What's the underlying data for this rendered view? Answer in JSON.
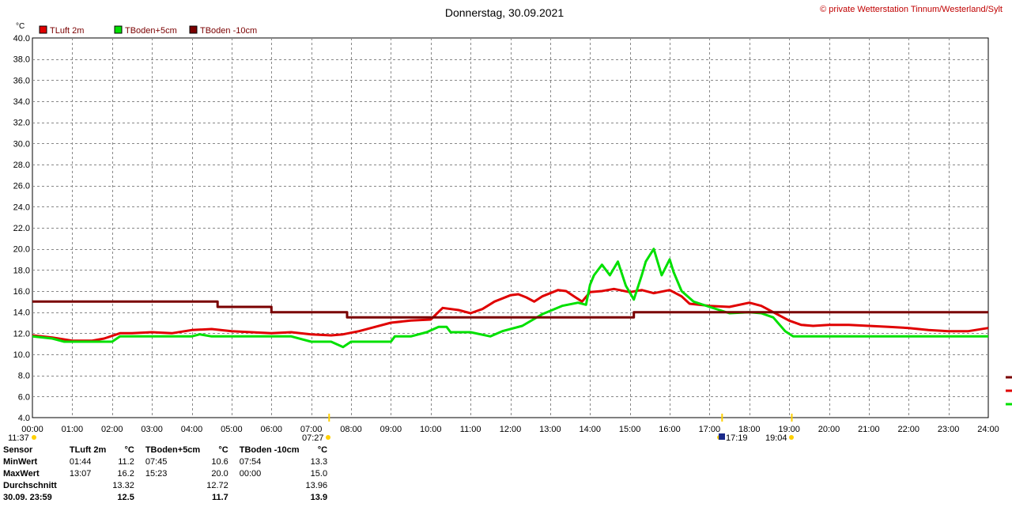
{
  "chart_data": {
    "type": "line",
    "title": "Donnerstag, 30.09.2021",
    "source": "© private Wetterstation Tinnum/Westerland/Sylt",
    "unit": "°C",
    "xlabels": [
      "00:00",
      "01:00",
      "02:00",
      "03:00",
      "04:00",
      "05:00",
      "06:00",
      "07:00",
      "08:00",
      "09:00",
      "10:00",
      "11:00",
      "12:00",
      "13:00",
      "14:00",
      "15:00",
      "16:00",
      "17:00",
      "18:00",
      "19:00",
      "20:00",
      "21:00",
      "22:00",
      "23:00",
      "24:00"
    ],
    "ylabels": [
      "4.0",
      "6.0",
      "8.0",
      "10.0",
      "12.0",
      "14.0",
      "16.0",
      "18.0",
      "20.0",
      "22.0",
      "24.0",
      "26.0",
      "28.0",
      "30.0",
      "32.0",
      "34.0",
      "36.0",
      "38.0",
      "40.0"
    ],
    "ylim": [
      4,
      40
    ],
    "xlim": [
      0,
      24
    ],
    "grid": true,
    "legend_position": "top-left",
    "markers": [
      {
        "time": "11:37",
        "symbol": "sun"
      },
      {
        "time": "07:27",
        "symbol": "sunrise"
      },
      {
        "time": "17:19",
        "symbol": "moon"
      },
      {
        "time": "19:04",
        "symbol": "sunset"
      }
    ],
    "series": [
      {
        "name": "TLuft 2m",
        "color": "#e00000",
        "points": [
          [
            0,
            11.8
          ],
          [
            0.5,
            11.6
          ],
          [
            1,
            11.3
          ],
          [
            1.5,
            11.3
          ],
          [
            1.8,
            11.5
          ],
          [
            2.2,
            12.0
          ],
          [
            2.5,
            12.0
          ],
          [
            3,
            12.1
          ],
          [
            3.5,
            12.0
          ],
          [
            4,
            12.3
          ],
          [
            4.5,
            12.4
          ],
          [
            5,
            12.2
          ],
          [
            5.5,
            12.1
          ],
          [
            6,
            12.0
          ],
          [
            6.5,
            12.1
          ],
          [
            7,
            11.9
          ],
          [
            7.5,
            11.8
          ],
          [
            7.8,
            11.9
          ],
          [
            8.2,
            12.2
          ],
          [
            8.5,
            12.5
          ],
          [
            9,
            13.0
          ],
          [
            9.5,
            13.2
          ],
          [
            10,
            13.3
          ],
          [
            10.3,
            14.4
          ],
          [
            10.7,
            14.2
          ],
          [
            11,
            13.9
          ],
          [
            11.3,
            14.3
          ],
          [
            11.6,
            15.0
          ],
          [
            12,
            15.6
          ],
          [
            12.2,
            15.7
          ],
          [
            12.4,
            15.4
          ],
          [
            12.6,
            15.0
          ],
          [
            12.8,
            15.5
          ],
          [
            13,
            15.8
          ],
          [
            13.2,
            16.1
          ],
          [
            13.4,
            16.0
          ],
          [
            13.6,
            15.5
          ],
          [
            13.8,
            15.0
          ],
          [
            14,
            15.9
          ],
          [
            14.3,
            16.0
          ],
          [
            14.6,
            16.2
          ],
          [
            15,
            15.9
          ],
          [
            15.3,
            16.1
          ],
          [
            15.6,
            15.8
          ],
          [
            16,
            16.1
          ],
          [
            16.3,
            15.5
          ],
          [
            16.5,
            14.8
          ],
          [
            17,
            14.6
          ],
          [
            17.5,
            14.5
          ],
          [
            18,
            14.9
          ],
          [
            18.3,
            14.6
          ],
          [
            18.6,
            14.0
          ],
          [
            19,
            13.2
          ],
          [
            19.3,
            12.8
          ],
          [
            19.6,
            12.7
          ],
          [
            20,
            12.8
          ],
          [
            20.5,
            12.8
          ],
          [
            21,
            12.7
          ],
          [
            21.5,
            12.6
          ],
          [
            22,
            12.5
          ],
          [
            22.5,
            12.3
          ],
          [
            23,
            12.2
          ],
          [
            23.5,
            12.2
          ],
          [
            24,
            12.5
          ]
        ]
      },
      {
        "name": "TBoden+5cm",
        "color": "#00e000",
        "points": [
          [
            0,
            11.7
          ],
          [
            0.5,
            11.5
          ],
          [
            0.8,
            11.2
          ],
          [
            1,
            11.2
          ],
          [
            2,
            11.2
          ],
          [
            2.2,
            11.7
          ],
          [
            3,
            11.7
          ],
          [
            3.5,
            11.7
          ],
          [
            4,
            11.7
          ],
          [
            4.2,
            11.9
          ],
          [
            4.5,
            11.7
          ],
          [
            5,
            11.7
          ],
          [
            5.5,
            11.7
          ],
          [
            6,
            11.7
          ],
          [
            6.5,
            11.7
          ],
          [
            7,
            11.2
          ],
          [
            7.5,
            11.2
          ],
          [
            7.8,
            10.7
          ],
          [
            8,
            11.2
          ],
          [
            9,
            11.2
          ],
          [
            9.1,
            11.7
          ],
          [
            9.5,
            11.7
          ],
          [
            9.9,
            12.1
          ],
          [
            10.2,
            12.6
          ],
          [
            10.4,
            12.6
          ],
          [
            10.5,
            12.1
          ],
          [
            11,
            12.1
          ],
          [
            11.5,
            11.7
          ],
          [
            11.8,
            12.2
          ],
          [
            12.3,
            12.7
          ],
          [
            12.8,
            13.8
          ],
          [
            13.3,
            14.6
          ],
          [
            13.7,
            14.9
          ],
          [
            13.9,
            14.7
          ],
          [
            14,
            16.6
          ],
          [
            14.1,
            17.5
          ],
          [
            14.3,
            18.5
          ],
          [
            14.5,
            17.5
          ],
          [
            14.7,
            18.8
          ],
          [
            14.9,
            16.5
          ],
          [
            15.1,
            15.2
          ],
          [
            15.3,
            17.5
          ],
          [
            15.4,
            18.8
          ],
          [
            15.6,
            20.0
          ],
          [
            15.8,
            17.5
          ],
          [
            16,
            19.0
          ],
          [
            16.1,
            17.8
          ],
          [
            16.3,
            16.0
          ],
          [
            16.6,
            15.0
          ],
          [
            17,
            14.5
          ],
          [
            17.5,
            13.9
          ],
          [
            18,
            14.0
          ],
          [
            18.3,
            13.9
          ],
          [
            18.6,
            13.5
          ],
          [
            18.9,
            12.2
          ],
          [
            19.1,
            11.7
          ],
          [
            19.5,
            11.7
          ],
          [
            20,
            11.7
          ],
          [
            21,
            11.7
          ],
          [
            21.5,
            11.7
          ],
          [
            22,
            11.7
          ],
          [
            22.8,
            11.7
          ],
          [
            23.3,
            11.7
          ],
          [
            24,
            11.7
          ]
        ]
      },
      {
        "name": "TBoden -10cm",
        "color": "#7a0000",
        "points": [
          [
            0,
            15.0
          ],
          [
            4.65,
            15.0
          ],
          [
            4.65,
            14.5
          ],
          [
            6.0,
            14.5
          ],
          [
            6.0,
            14.0
          ],
          [
            7.9,
            14.0
          ],
          [
            7.9,
            13.5
          ],
          [
            15.1,
            13.5
          ],
          [
            15.1,
            14.0
          ],
          [
            24,
            14.0
          ]
        ]
      }
    ]
  },
  "stats": {
    "header": {
      "sensor": "Sensor",
      "unit": "°C"
    },
    "rows": [
      {
        "label": "MinWert",
        "v": [
          [
            "01:44",
            "11.2"
          ],
          [
            "07:45",
            "10.6"
          ],
          [
            "07:54",
            "13.3"
          ]
        ]
      },
      {
        "label": "MaxWert",
        "v": [
          [
            "13:07",
            "16.2"
          ],
          [
            "15:23",
            "20.0"
          ],
          [
            "00:00",
            "15.0"
          ]
        ]
      },
      {
        "label": "Durchschnitt",
        "v": [
          [
            "",
            "13.32"
          ],
          [
            "",
            "12.72"
          ],
          [
            "",
            "13.96"
          ]
        ]
      },
      {
        "label": "30.09. 23:59",
        "v": [
          [
            "",
            "12.5"
          ],
          [
            "",
            "11.7"
          ],
          [
            "",
            "13.9"
          ]
        ]
      }
    ]
  }
}
